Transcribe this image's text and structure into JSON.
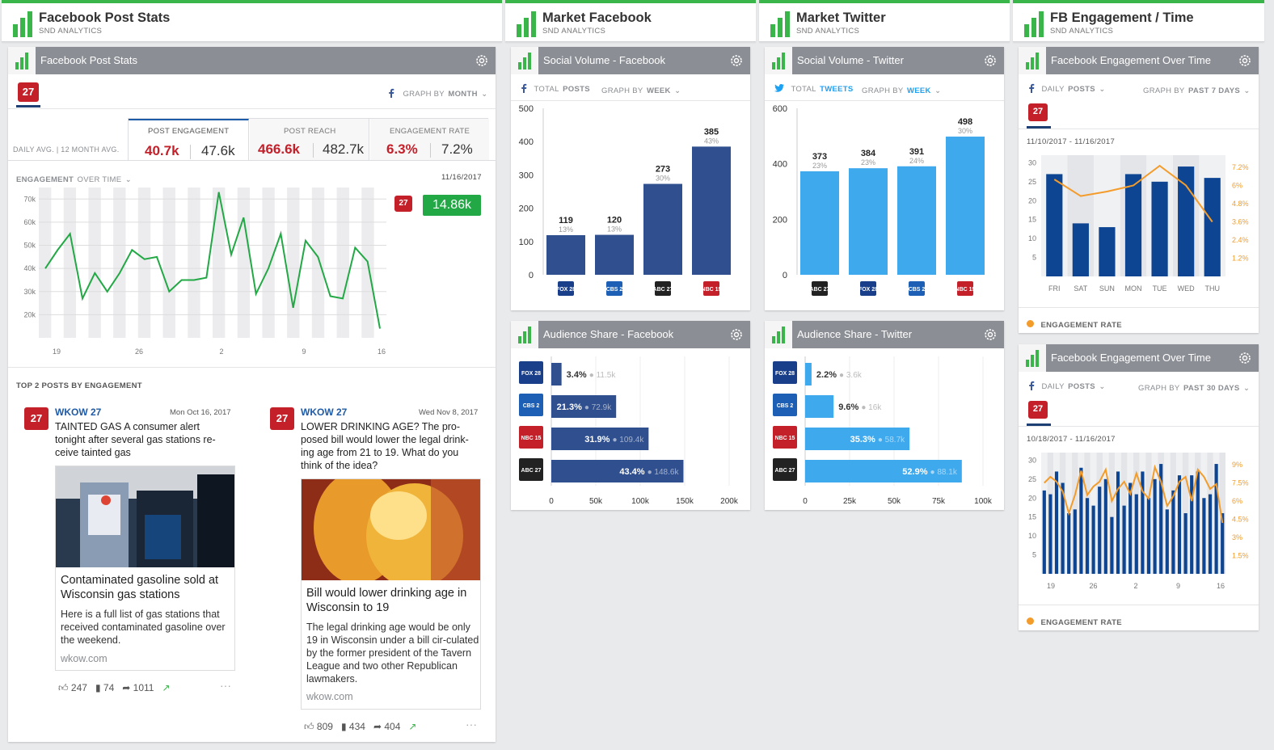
{
  "columns": [
    {
      "title": "Facebook Post Stats",
      "subtitle": "SND ANALYTICS"
    },
    {
      "title": "Market Facebook",
      "subtitle": "SND ANALYTICS"
    },
    {
      "title": "Market Twitter",
      "subtitle": "SND ANALYTICS"
    },
    {
      "title": "FB Engagement / Time",
      "subtitle": "SND ANALYTICS"
    }
  ],
  "colors": {
    "accent": "#3ab54a",
    "fb_blue": "#2f4f8f",
    "tw_blue": "#3fa9ee",
    "red": "#c3202a",
    "orange": "#f39c2b",
    "eng_blue": "#0d4592"
  },
  "post_stats": {
    "card_title": "Facebook Post Stats",
    "station_logo": "27",
    "graph_by_label": "GRAPH BY",
    "graph_by_value": "MONTH",
    "daily_avg_label": "DAILY AVG. | 12 MONTH AVG.",
    "kpis": [
      {
        "label": "POST ENGAGEMENT",
        "value": "40.7k",
        "avg": "47.6k"
      },
      {
        "label": "POST REACH",
        "value": "466.6k",
        "avg": "482.7k"
      },
      {
        "label": "ENGAGEMENT RATE",
        "value": "6.3%",
        "avg": "7.2%"
      }
    ],
    "engagement_label": "ENGAGEMENT",
    "over_time_label": "OVER TIME",
    "date": "11/16/2017",
    "current_value": "14.86k",
    "top_posts_label": "TOP 2 POSTS BY ENGAGEMENT",
    "posts": [
      {
        "author": "WKOW 27",
        "date": "Mon Oct 16, 2017",
        "text": "TAINTED GAS A consumer alert tonight after several gas stations re-ceive tainted gas",
        "link_title": "Contaminated gasoline sold at Wisconsin gas stations",
        "link_desc": "Here is a full list of gas stations that received contaminated gasoline over the weekend.",
        "link_domain": "wkow.com",
        "likes": "247",
        "comments": "74",
        "shares": "1011"
      },
      {
        "author": "WKOW 27",
        "date": "Wed Nov 8, 2017",
        "text": "LOWER DRINKING AGE? The pro-posed bill would lower the legal drink-ing age from 21 to 19. What do you think of the idea?",
        "link_title": "Bill would lower drinking age in Wisconsin to 19",
        "link_desc": "The legal drinking age would be only 19 in Wisconsin under a bill cir-culated by the former president of the Tavern League and two other Republican lawmakers.",
        "link_domain": "wkow.com",
        "likes": "809",
        "comments": "434",
        "shares": "404"
      }
    ]
  },
  "social_volume_fb": {
    "card_title": "Social Volume - Facebook",
    "total_label": "TOTAL",
    "total_value": "POSTS",
    "graph_by_label": "GRAPH BY",
    "graph_by_value": "WEEK"
  },
  "social_volume_tw": {
    "card_title": "Social Volume - Twitter",
    "total_label": "TOTAL",
    "total_value": "TWEETS",
    "graph_by_label": "GRAPH BY",
    "graph_by_value": "WEEK"
  },
  "audience_fb": {
    "card_title": "Audience Share - Facebook"
  },
  "audience_tw": {
    "card_title": "Audience Share - Twitter"
  },
  "eng7": {
    "card_title": "Facebook Engagement Over Time",
    "daily_label": "DAILY",
    "daily_value": "POSTS",
    "graph_by_label": "GRAPH BY",
    "graph_by_value": "PAST 7 DAYS",
    "date_range": "11/10/2017 - 11/16/2017",
    "legend": "ENGAGEMENT RATE"
  },
  "eng30": {
    "card_title": "Facebook Engagement Over Time",
    "daily_label": "DAILY",
    "daily_value": "POSTS",
    "graph_by_label": "GRAPH BY",
    "graph_by_value": "PAST 30 DAYS",
    "date_range": "10/18/2017 - 11/16/2017",
    "legend": "ENGAGEMENT RATE"
  },
  "chart_data": [
    {
      "type": "line",
      "id": "engagement-over-time",
      "x_ticks": [
        "19",
        "26",
        "2",
        "9",
        "16"
      ],
      "y_ticks": [
        "70k",
        "60k",
        "50k",
        "40k",
        "30k",
        "20k"
      ],
      "ylim": [
        10,
        75
      ],
      "values": [
        40,
        48,
        55,
        27,
        38,
        30,
        38,
        48,
        44,
        45,
        30,
        35,
        35,
        36,
        73,
        46,
        62,
        29,
        40,
        55,
        23,
        52,
        45,
        28,
        27,
        49,
        43,
        14
      ],
      "grid": true
    },
    {
      "type": "bar",
      "id": "social-volume-facebook",
      "y_ticks": [
        "500",
        "400",
        "300",
        "200",
        "100",
        "0"
      ],
      "ylim": [
        0,
        500
      ],
      "values": [
        119,
        120,
        273,
        385
      ],
      "value_labels": [
        "119",
        "120",
        "273",
        "385"
      ],
      "pct_labels": [
        "13%",
        "13%",
        "30%",
        "43%"
      ],
      "stations": [
        "FOX 28",
        "CBS 2",
        "ABC 27",
        "NBC 15"
      ]
    },
    {
      "type": "bar",
      "id": "social-volume-twitter",
      "y_ticks": [
        "600",
        "400",
        "200",
        "0"
      ],
      "ylim": [
        0,
        600
      ],
      "values": [
        373,
        384,
        391,
        498
      ],
      "value_labels": [
        "373",
        "384",
        "391",
        "498"
      ],
      "pct_labels": [
        "23%",
        "23%",
        "24%",
        "30%"
      ],
      "stations": [
        "ABC 27",
        "FOX 28",
        "CBS 2",
        "NBC 15"
      ]
    },
    {
      "type": "bar",
      "id": "audience-share-facebook",
      "orientation": "horizontal",
      "x_ticks": [
        "0",
        "50k",
        "100k",
        "150k",
        "200k"
      ],
      "xlim": [
        0,
        200
      ],
      "values": [
        11.5,
        72.9,
        109.4,
        148.6
      ],
      "pct_labels": [
        "3.4%",
        "21.3%",
        "31.9%",
        "43.4%"
      ],
      "value_labels": [
        "11.5k",
        "72.9k",
        "109.4k",
        "148.6k"
      ],
      "stations": [
        "FOX 28",
        "CBS 2",
        "NBC 15",
        "ABC 27"
      ]
    },
    {
      "type": "bar",
      "id": "audience-share-twitter",
      "orientation": "horizontal",
      "x_ticks": [
        "0",
        "25k",
        "50k",
        "75k",
        "100k"
      ],
      "xlim": [
        0,
        100
      ],
      "values": [
        3.6,
        16,
        58.7,
        88.1
      ],
      "pct_labels": [
        "2.2%",
        "9.6%",
        "35.3%",
        "52.9%"
      ],
      "value_labels": [
        "3.6k",
        "16k",
        "58.7k",
        "88.1k"
      ],
      "stations": [
        "FOX 28",
        "CBS 2",
        "NBC 15",
        "ABC 27"
      ]
    },
    {
      "type": "bar",
      "id": "engagement-7-days",
      "categories": [
        "FRI",
        "SAT",
        "SUN",
        "MON",
        "TUE",
        "WED",
        "THU"
      ],
      "y_ticks": [
        "30",
        "25",
        "20",
        "15",
        "10",
        "5"
      ],
      "y2_ticks": [
        "7.2%",
        "6%",
        "4.8%",
        "3.6%",
        "2.4%",
        "1.2%"
      ],
      "ylim": [
        0,
        32
      ],
      "y2lim": [
        0,
        8
      ],
      "values": [
        27,
        14,
        13,
        27,
        25,
        29,
        26
      ],
      "rate": [
        6.4,
        5.3,
        5.6,
        6.0,
        7.3,
        6.0,
        3.6
      ]
    },
    {
      "type": "bar",
      "id": "engagement-30-days",
      "x_ticks": [
        "19",
        "26",
        "2",
        "9",
        "16"
      ],
      "y_ticks": [
        "30",
        "25",
        "20",
        "15",
        "10",
        "5"
      ],
      "y2_ticks": [
        "9%",
        "7.5%",
        "6%",
        "4.5%",
        "3%",
        "1.5%"
      ],
      "ylim": [
        0,
        32
      ],
      "y2lim": [
        0,
        10
      ],
      "values": [
        22,
        21,
        27,
        24,
        16,
        17,
        28,
        20,
        18,
        23,
        25,
        15,
        27,
        18,
        24,
        21,
        27,
        20,
        25,
        29,
        17,
        22,
        26,
        16,
        26,
        27,
        20,
        21,
        29,
        16
      ],
      "rate": [
        7.5,
        8.0,
        7.6,
        6.8,
        5.0,
        6.5,
        8.5,
        6.5,
        7.2,
        7.6,
        8.6,
        6.0,
        7.0,
        7.6,
        6.6,
        8.3,
        6.8,
        6.2,
        8.8,
        7.6,
        5.6,
        6.4,
        7.6,
        8.0,
        6.0,
        8.6,
        8.0,
        7.0,
        7.4,
        4.2
      ]
    }
  ]
}
